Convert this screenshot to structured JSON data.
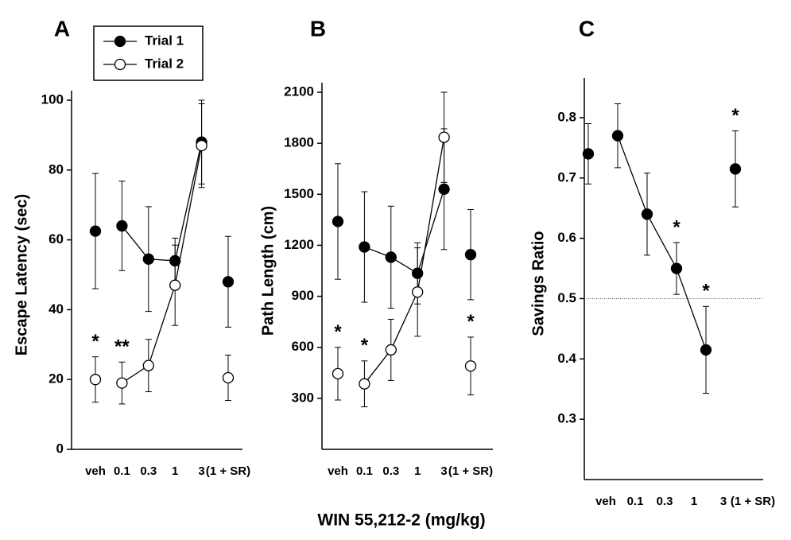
{
  "xlabel": "WIN 55,212-2 (mg/kg)",
  "chart_data": [
    {
      "type": "line",
      "title": "A",
      "ylabel": "Escape Latency (sec)",
      "categories": [
        "veh",
        "0.1",
        "0.3",
        "1",
        "3",
        "(1 + SR)"
      ],
      "ylim": [
        0,
        100
      ],
      "yticks": [
        0,
        20,
        40,
        60,
        80,
        100
      ],
      "legend": true,
      "series": [
        {
          "name": "Trial 1",
          "color": "#000000",
          "fill": "#000000",
          "values": [
            62.5,
            64,
            54.5,
            54,
            88,
            48
          ],
          "errors": [
            16.5,
            12.8,
            15,
            6.5,
            12,
            13
          ],
          "annotations": [
            null,
            null,
            null,
            null,
            null,
            null
          ]
        },
        {
          "name": "Trial 2",
          "color": "#000000",
          "fill": "#ffffff",
          "values": [
            20,
            19,
            24,
            47,
            87,
            20.5
          ],
          "errors": [
            6.5,
            6,
            7.5,
            11.5,
            12,
            6.5
          ],
          "annotations": [
            "*",
            "**",
            null,
            null,
            null,
            null
          ]
        }
      ]
    },
    {
      "type": "line",
      "title": "B",
      "ylabel": "Path Length (cm)",
      "categories": [
        "veh",
        "0.1",
        "0.3",
        "1",
        "3",
        "(1 + SR)"
      ],
      "ylim": [
        0,
        2100
      ],
      "yticks": [
        300,
        600,
        900,
        1200,
        1500,
        1800,
        2100
      ],
      "series": [
        {
          "color": "#000000",
          "fill": "#000000",
          "values": [
            1340,
            1190,
            1130,
            1035,
            1530,
            1145
          ],
          "errors": [
            340,
            325,
            300,
            180,
            355,
            265
          ],
          "annotations": [
            null,
            null,
            null,
            null,
            null,
            null
          ]
        },
        {
          "color": "#000000",
          "fill": "#ffffff",
          "values": [
            445,
            385,
            585,
            925,
            1835,
            490
          ],
          "errors": [
            155,
            135,
            180,
            260,
            265,
            170
          ],
          "annotations": [
            "*",
            "*",
            null,
            null,
            null,
            "*"
          ]
        }
      ]
    },
    {
      "type": "line",
      "title": "C",
      "ylabel": "Savings Ratio",
      "categories": [
        "veh",
        "0.1",
        "0.3",
        "1",
        "3",
        "(1 + SR)"
      ],
      "ylim": [
        0.2,
        0.85
      ],
      "yticks": [
        0.3,
        0.4,
        0.5,
        0.6,
        0.7,
        0.8
      ],
      "refline": 0.5,
      "series": [
        {
          "color": "#000000",
          "fill": "#000000",
          "values": [
            0.74,
            0.77,
            0.64,
            0.55,
            0.415,
            0.715
          ],
          "errors": [
            0.05,
            0.053,
            0.068,
            0.043,
            0.072,
            0.063
          ],
          "annotations": [
            null,
            null,
            null,
            "*",
            "*",
            "*"
          ]
        }
      ]
    }
  ]
}
